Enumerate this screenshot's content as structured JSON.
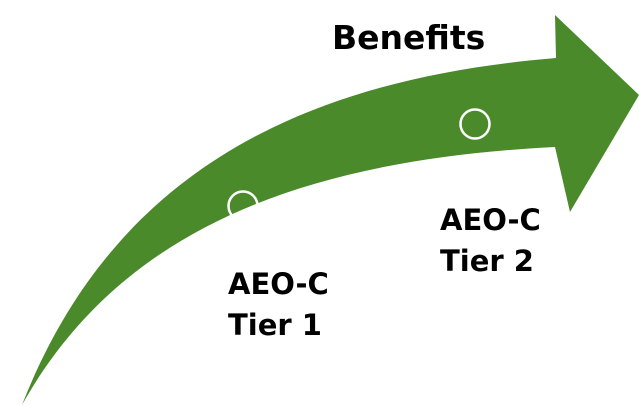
{
  "title": "Benefits",
  "colors": {
    "arrow_fill": "#4a8a2a",
    "marker_stroke": "#ffffff",
    "text": "#000000"
  },
  "markers": [
    {
      "label_line1": "AEO-C",
      "label_line2": "Tier 1"
    },
    {
      "label_line1": "AEO-C",
      "label_line2": "Tier 2"
    }
  ]
}
